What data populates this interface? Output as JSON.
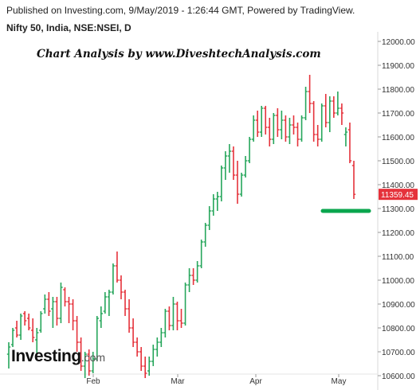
{
  "header": {
    "published": "Published on Investing.com, 9/May/2019 - 1:26:44 GMT, Powered by TradingView.",
    "symbol": "Nifty 50, India, NSE:NSEI, D"
  },
  "annotation": "Chart Analysis by www.DiveshtechAnalysis.com",
  "logo": {
    "main": "Investing",
    "suffix": ".com"
  },
  "colors": {
    "up": "#26a65b",
    "down": "#e5323b",
    "support": "#0aa64e",
    "price_tag": "#e5323b"
  },
  "chart_data": {
    "type": "ohlc",
    "title": "Nifty 50, India, NSE:NSEI, D",
    "ylim": [
      10500,
      12000
    ],
    "y_ticks": [
      "12000.00",
      "11900.00",
      "11800.00",
      "11700.00",
      "11600.00",
      "11500.00",
      "11400.00",
      "11300.00",
      "11200.00",
      "11100.00",
      "11000.00",
      "10900.00",
      "10800.00",
      "10700.00",
      "10600.00"
    ],
    "x_ticks": [
      "Feb",
      "Mar",
      "Apr",
      "May"
    ],
    "last_price": "11359.45",
    "support_level": 11290,
    "bars": [
      {
        "o": 10690,
        "h": 10740,
        "l": 10630,
        "c": 10720
      },
      {
        "o": 10730,
        "h": 10800,
        "l": 10720,
        "c": 10790
      },
      {
        "o": 10800,
        "h": 10830,
        "l": 10760,
        "c": 10770
      },
      {
        "o": 10770,
        "h": 10860,
        "l": 10750,
        "c": 10850
      },
      {
        "o": 10860,
        "h": 10870,
        "l": 10810,
        "c": 10830
      },
      {
        "o": 10840,
        "h": 10860,
        "l": 10790,
        "c": 10800
      },
      {
        "o": 10790,
        "h": 10840,
        "l": 10740,
        "c": 10760
      },
      {
        "o": 10750,
        "h": 10800,
        "l": 10690,
        "c": 10780
      },
      {
        "o": 10790,
        "h": 10870,
        "l": 10780,
        "c": 10860
      },
      {
        "o": 10880,
        "h": 10940,
        "l": 10860,
        "c": 10920
      },
      {
        "o": 10920,
        "h": 10950,
        "l": 10850,
        "c": 10870
      },
      {
        "o": 10880,
        "h": 10930,
        "l": 10800,
        "c": 10910
      },
      {
        "o": 10910,
        "h": 10930,
        "l": 10810,
        "c": 10840
      },
      {
        "o": 10840,
        "h": 10990,
        "l": 10820,
        "c": 10970
      },
      {
        "o": 10960,
        "h": 10970,
        "l": 10890,
        "c": 10910
      },
      {
        "o": 10910,
        "h": 10930,
        "l": 10820,
        "c": 10900
      },
      {
        "o": 10900,
        "h": 10920,
        "l": 10790,
        "c": 10830
      },
      {
        "o": 10830,
        "h": 10850,
        "l": 10700,
        "c": 10740
      },
      {
        "o": 10740,
        "h": 10760,
        "l": 10620,
        "c": 10640
      },
      {
        "o": 10640,
        "h": 10700,
        "l": 10590,
        "c": 10690
      },
      {
        "o": 10690,
        "h": 10710,
        "l": 10600,
        "c": 10620
      },
      {
        "o": 10620,
        "h": 10700,
        "l": 10610,
        "c": 10670
      },
      {
        "o": 10670,
        "h": 10850,
        "l": 10660,
        "c": 10840
      },
      {
        "o": 10830,
        "h": 10890,
        "l": 10800,
        "c": 10860
      },
      {
        "o": 10870,
        "h": 10950,
        "l": 10860,
        "c": 10930
      },
      {
        "o": 10930,
        "h": 10960,
        "l": 10850,
        "c": 10950
      },
      {
        "o": 10950,
        "h": 11070,
        "l": 10940,
        "c": 11060
      },
      {
        "o": 11060,
        "h": 11120,
        "l": 10990,
        "c": 11000
      },
      {
        "o": 11000,
        "h": 11020,
        "l": 10920,
        "c": 10950
      },
      {
        "o": 10950,
        "h": 10960,
        "l": 10850,
        "c": 10880
      },
      {
        "o": 10880,
        "h": 10920,
        "l": 10780,
        "c": 10800
      },
      {
        "o": 10800,
        "h": 10840,
        "l": 10720,
        "c": 10740
      },
      {
        "o": 10740,
        "h": 10760,
        "l": 10680,
        "c": 10700
      },
      {
        "o": 10700,
        "h": 10720,
        "l": 10620,
        "c": 10640
      },
      {
        "o": 10640,
        "h": 10680,
        "l": 10590,
        "c": 10610
      },
      {
        "o": 10620,
        "h": 10680,
        "l": 10600,
        "c": 10660
      },
      {
        "o": 10660,
        "h": 10730,
        "l": 10640,
        "c": 10710
      },
      {
        "o": 10710,
        "h": 10760,
        "l": 10680,
        "c": 10740
      },
      {
        "o": 10740,
        "h": 10800,
        "l": 10720,
        "c": 10780
      },
      {
        "o": 10780,
        "h": 10880,
        "l": 10760,
        "c": 10870
      },
      {
        "o": 10870,
        "h": 10890,
        "l": 10790,
        "c": 10810
      },
      {
        "o": 10810,
        "h": 10930,
        "l": 10790,
        "c": 10900
      },
      {
        "o": 10900,
        "h": 10910,
        "l": 10790,
        "c": 10830
      },
      {
        "o": 10830,
        "h": 10880,
        "l": 10800,
        "c": 10820
      },
      {
        "o": 10820,
        "h": 10990,
        "l": 10810,
        "c": 10980
      },
      {
        "o": 10980,
        "h": 11050,
        "l": 10950,
        "c": 11020
      },
      {
        "o": 11020,
        "h": 11050,
        "l": 10980,
        "c": 11000
      },
      {
        "o": 11000,
        "h": 11080,
        "l": 10990,
        "c": 11060
      },
      {
        "o": 11060,
        "h": 11170,
        "l": 11050,
        "c": 11160
      },
      {
        "o": 11160,
        "h": 11240,
        "l": 11140,
        "c": 11230
      },
      {
        "o": 11230,
        "h": 11310,
        "l": 11210,
        "c": 11290
      },
      {
        "o": 11290,
        "h": 11360,
        "l": 11270,
        "c": 11340
      },
      {
        "o": 11340,
        "h": 11370,
        "l": 11290,
        "c": 11350
      },
      {
        "o": 11350,
        "h": 11480,
        "l": 11330,
        "c": 11470
      },
      {
        "o": 11470,
        "h": 11540,
        "l": 11420,
        "c": 11520
      },
      {
        "o": 11520,
        "h": 11570,
        "l": 11450,
        "c": 11540
      },
      {
        "o": 11540,
        "h": 11560,
        "l": 11420,
        "c": 11440
      },
      {
        "o": 11440,
        "h": 11500,
        "l": 11320,
        "c": 11360
      },
      {
        "o": 11360,
        "h": 11450,
        "l": 11350,
        "c": 11440
      },
      {
        "o": 11440,
        "h": 11520,
        "l": 11430,
        "c": 11500
      },
      {
        "o": 11500,
        "h": 11600,
        "l": 11490,
        "c": 11590
      },
      {
        "o": 11590,
        "h": 11690,
        "l": 11580,
        "c": 11670
      },
      {
        "o": 11670,
        "h": 11710,
        "l": 11600,
        "c": 11620
      },
      {
        "o": 11620,
        "h": 11730,
        "l": 11600,
        "c": 11720
      },
      {
        "o": 11720,
        "h": 11730,
        "l": 11610,
        "c": 11640
      },
      {
        "o": 11640,
        "h": 11680,
        "l": 11560,
        "c": 11590
      },
      {
        "o": 11590,
        "h": 11700,
        "l": 11570,
        "c": 11690
      },
      {
        "o": 11690,
        "h": 11720,
        "l": 11600,
        "c": 11630
      },
      {
        "o": 11630,
        "h": 11710,
        "l": 11590,
        "c": 11670
      },
      {
        "o": 11670,
        "h": 11690,
        "l": 11580,
        "c": 11600
      },
      {
        "o": 11600,
        "h": 11680,
        "l": 11570,
        "c": 11650
      },
      {
        "o": 11650,
        "h": 11690,
        "l": 11610,
        "c": 11640
      },
      {
        "o": 11640,
        "h": 11660,
        "l": 11560,
        "c": 11590
      },
      {
        "o": 11590,
        "h": 11690,
        "l": 11580,
        "c": 11680
      },
      {
        "o": 11680,
        "h": 11810,
        "l": 11670,
        "c": 11790
      },
      {
        "o": 11790,
        "h": 11860,
        "l": 11700,
        "c": 11740
      },
      {
        "o": 11740,
        "h": 11750,
        "l": 11580,
        "c": 11610
      },
      {
        "o": 11610,
        "h": 11650,
        "l": 11560,
        "c": 11590
      },
      {
        "o": 11590,
        "h": 11740,
        "l": 11580,
        "c": 11730
      },
      {
        "o": 11730,
        "h": 11780,
        "l": 11640,
        "c": 11660
      },
      {
        "o": 11660,
        "h": 11770,
        "l": 11620,
        "c": 11750
      },
      {
        "o": 11750,
        "h": 11770,
        "l": 11680,
        "c": 11700
      },
      {
        "o": 11700,
        "h": 11790,
        "l": 11690,
        "c": 11720
      },
      {
        "o": 11720,
        "h": 11740,
        "l": 11650,
        "c": 11700
      },
      {
        "o": 11610,
        "h": 11640,
        "l": 11560,
        "c": 11620
      },
      {
        "o": 11630,
        "h": 11660,
        "l": 11490,
        "c": 11500
      },
      {
        "o": 11480,
        "h": 11500,
        "l": 11340,
        "c": 11359.45
      }
    ]
  }
}
